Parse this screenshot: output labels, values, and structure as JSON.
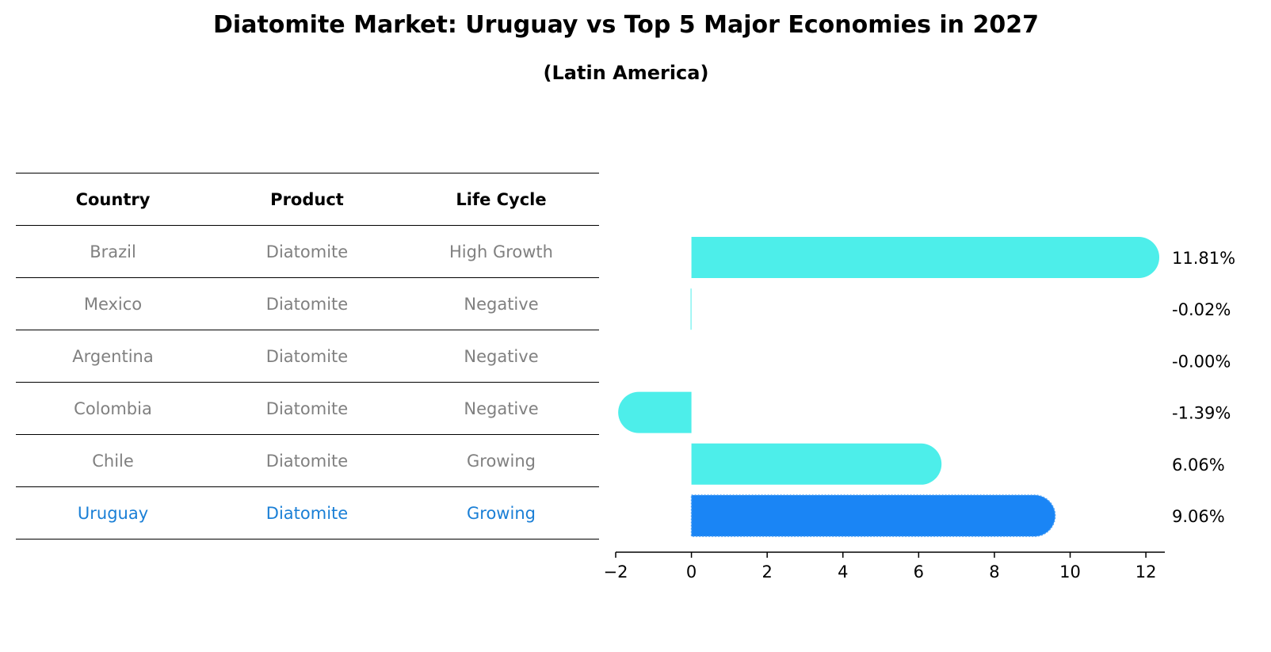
{
  "title": "Diatomite Market: Uruguay vs Top 5 Major Economies in 2027",
  "subtitle": "(Latin America)",
  "table": {
    "headers": [
      "Country",
      "Product",
      "Life Cycle"
    ],
    "rows": [
      {
        "country": "Brazil",
        "product": "Diatomite",
        "life_cycle": "High Growth"
      },
      {
        "country": "Mexico",
        "product": "Diatomite",
        "life_cycle": "Negative"
      },
      {
        "country": "Argentina",
        "product": "Diatomite",
        "life_cycle": "Negative"
      },
      {
        "country": "Colombia",
        "product": "Diatomite",
        "life_cycle": "Negative"
      },
      {
        "country": "Chile",
        "product": "Diatomite",
        "life_cycle": "Growing"
      },
      {
        "country": "Uruguay",
        "product": "Diatomite",
        "life_cycle": "Growing"
      }
    ]
  },
  "colors": {
    "bar": "#4deeea",
    "highlight_bar": "#1a85f5",
    "highlight_text": "#1a7fd6",
    "muted_text": "#808080"
  },
  "chart_data": {
    "type": "bar",
    "orientation": "horizontal",
    "categories": [
      "Brazil",
      "Mexico",
      "Argentina",
      "Colombia",
      "Chile",
      "Uruguay"
    ],
    "values": [
      11.81,
      -0.02,
      -0.0,
      -1.39,
      6.06,
      9.06
    ],
    "value_labels": [
      "11.81%",
      "-0.02%",
      "-0.00%",
      "-1.39%",
      "6.06%",
      "9.06%"
    ],
    "highlight": "Uruguay",
    "xlim": [
      -2,
      12.5
    ],
    "xticks": [
      -2,
      0,
      2,
      4,
      6,
      8,
      10,
      12
    ],
    "xtick_labels": [
      "−2",
      "0",
      "2",
      "4",
      "6",
      "8",
      "10",
      "12"
    ],
    "title": "",
    "xlabel": "",
    "ylabel": "",
    "grid": false
  }
}
